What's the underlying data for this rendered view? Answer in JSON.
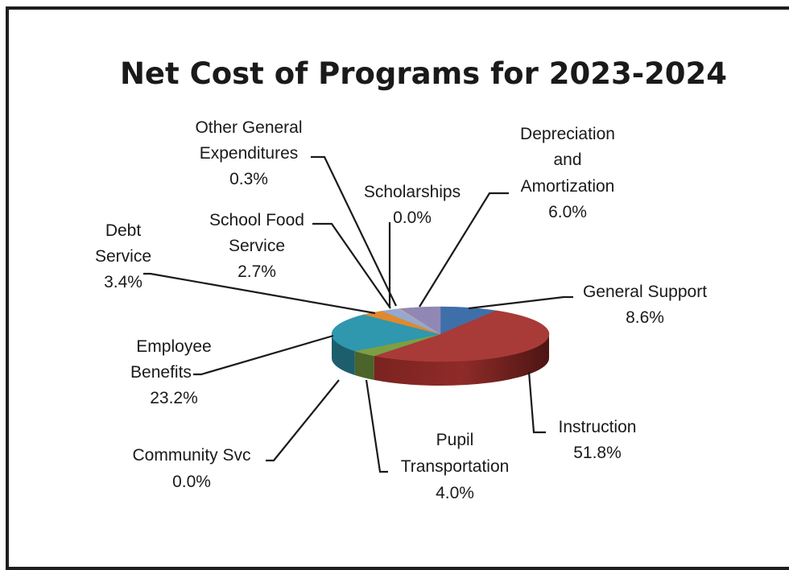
{
  "chart_data": {
    "type": "pie",
    "title": "Net Cost of Programs for 2023-2024",
    "slices": [
      {
        "name": "General Support",
        "value": 8.6,
        "label": "8.6%",
        "color": "#3f6fa8"
      },
      {
        "name": "Instruction",
        "value": 51.8,
        "label": "51.8%",
        "color": "#a83a38"
      },
      {
        "name": "Pupil Transportation",
        "value": 4.0,
        "label": "4.0%",
        "color": "#7aa043"
      },
      {
        "name": "Community Svc",
        "value": 0.0,
        "label": "0.0%",
        "color": "#3c2f5c"
      },
      {
        "name": "Employee Benefits",
        "value": 23.2,
        "label": "23.2%",
        "color": "#2f97ae"
      },
      {
        "name": "Debt Service",
        "value": 3.4,
        "label": "3.4%",
        "color": "#e0892e"
      },
      {
        "name": "School Food Service",
        "value": 2.7,
        "label": "2.7%",
        "color": "#93a9cf"
      },
      {
        "name": "Other General Expenditures",
        "value": 0.3,
        "label": "0.3%",
        "color": "#c9a3a1"
      },
      {
        "name": "Scholarships",
        "value": 0.0,
        "label": "0.0%",
        "color": "#b9cd8f"
      },
      {
        "name": "Depreciation and Amortization",
        "value": 6.0,
        "label": "6.0%",
        "color": "#9187b5"
      }
    ],
    "legend": "none",
    "three_d": true
  },
  "labels": {
    "general_support": {
      "name": "General Support",
      "pct": "8.6%"
    },
    "instruction": {
      "name": "Instruction",
      "pct": "51.8%"
    },
    "pupil_transportation": {
      "name1": "Pupil",
      "name2": "Transportation",
      "pct": "4.0%"
    },
    "community_svc": {
      "name": "Community Svc",
      "pct": "0.0%"
    },
    "employee_benefits": {
      "name1": "Employee",
      "name2": "Benefits",
      "pct": "23.2%"
    },
    "debt_service": {
      "name1": "Debt",
      "name2": "Service",
      "pct": "3.4%"
    },
    "school_food_service": {
      "name1": "School Food",
      "name2": "Service",
      "pct": "2.7%"
    },
    "other_general": {
      "name1": "Other General",
      "name2": "Expenditures",
      "pct": "0.3%"
    },
    "scholarships": {
      "name": "Scholarships",
      "pct": "0.0%"
    },
    "depreciation": {
      "name1": "Depreciation",
      "name2": "and",
      "name3": "Amortization",
      "pct": "6.0%"
    }
  }
}
